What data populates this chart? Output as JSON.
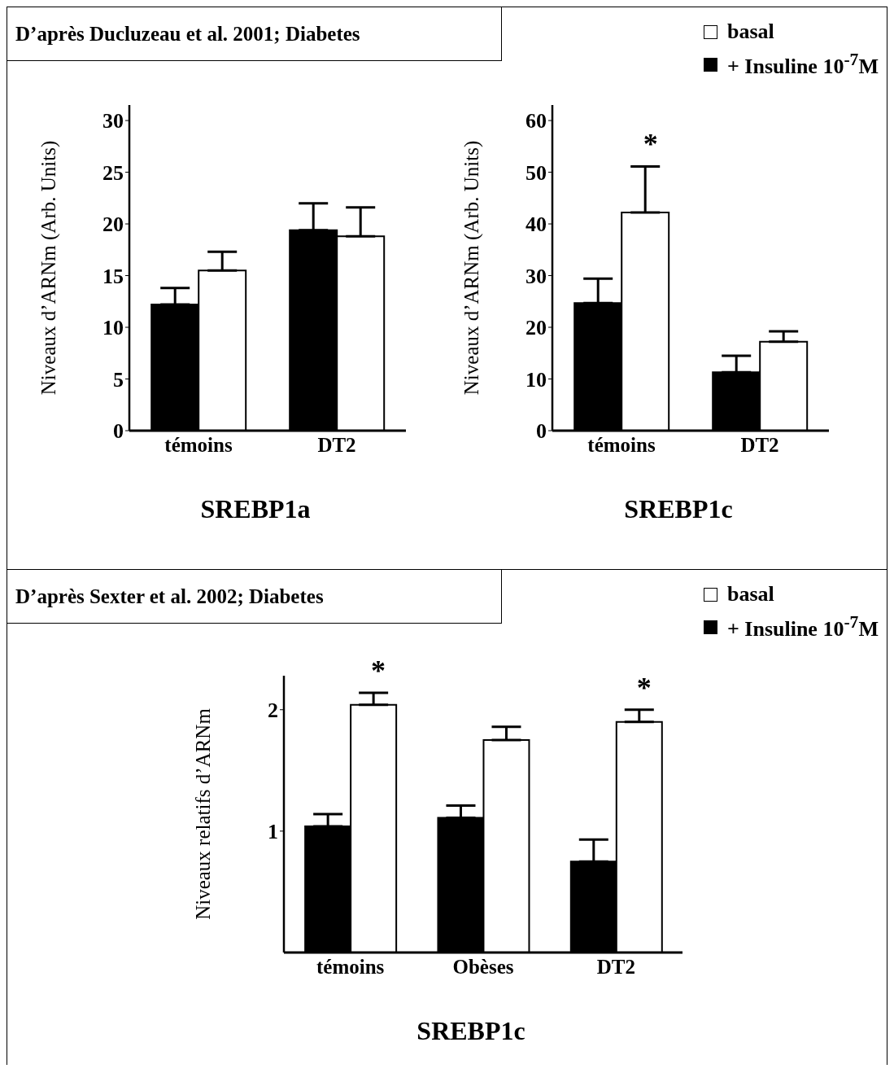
{
  "chart_data": [
    {
      "type": "bar",
      "title": "SREBP1a",
      "ylabel": "Niveaux d’ARNm (Arb. Units)",
      "annotations": [
        "D’après Ducluzeau et al. 2001; Diabetes"
      ],
      "categories": [
        "témoins",
        "DT2"
      ],
      "series": [
        {
          "color": "#000000",
          "values": [
            12.2,
            19.4
          ],
          "errors": [
            1.6,
            2.6
          ]
        },
        {
          "color": "#ffffff",
          "values": [
            15.5,
            18.8
          ],
          "errors": [
            1.8,
            2.8
          ]
        }
      ],
      "ylim": [
        0,
        31.5
      ],
      "yticks": [
        0,
        5,
        10,
        15,
        20,
        25,
        30
      ],
      "grid": false
    },
    {
      "type": "bar",
      "title": "SREBP1c",
      "ylabel": "Niveaux d’ARNm (Arb. Units)",
      "annotations": [
        {
          "text": "*",
          "x": "témoins",
          "y": 42.2
        }
      ],
      "categories": [
        "témoins",
        "DT2"
      ],
      "series": [
        {
          "name": "+ Insuline 10$^{-7}$M",
          "color": "#000000",
          "values": [
            24.7,
            11.3
          ],
          "errors": [
            4.7,
            3.2
          ]
        },
        {
          "name": "basal",
          "color": "#ffffff",
          "values": [
            42.2,
            17.2
          ],
          "errors": [
            8.9,
            2.0
          ]
        }
      ],
      "ylim": [
        0,
        63
      ],
      "yticks": [
        0,
        10,
        20,
        30,
        40,
        50,
        60
      ],
      "grid": false,
      "legend": "top right"
    },
    {
      "type": "bar",
      "title": "SREBP1c",
      "ylabel": "Niveaux  relatifs d’ARNm",
      "annotations": [
        "D’après Sexter et al. 2002; Diabetes",
        {
          "text": "*",
          "x": "témoins",
          "y": 2.04
        },
        {
          "text": "*",
          "x": "DT2",
          "y": 1.9
        }
      ],
      "categories": [
        "témoins",
        "Obèses",
        "DT2"
      ],
      "series": [
        {
          "name": "+ Insuline 10$^{-7}$M",
          "color": "#000000",
          "values": [
            1.04,
            1.11,
            0.75
          ],
          "errors": [
            0.1,
            0.1,
            0.18
          ]
        },
        {
          "name": "basal",
          "color": "#ffffff",
          "values": [
            2.04,
            1.75,
            1.9
          ],
          "errors": [
            0.1,
            0.11,
            0.1
          ]
        }
      ],
      "ylim": [
        0,
        2.28
      ],
      "yticks": [
        1,
        2
      ],
      "grid": false,
      "legend": "top right"
    }
  ]
}
